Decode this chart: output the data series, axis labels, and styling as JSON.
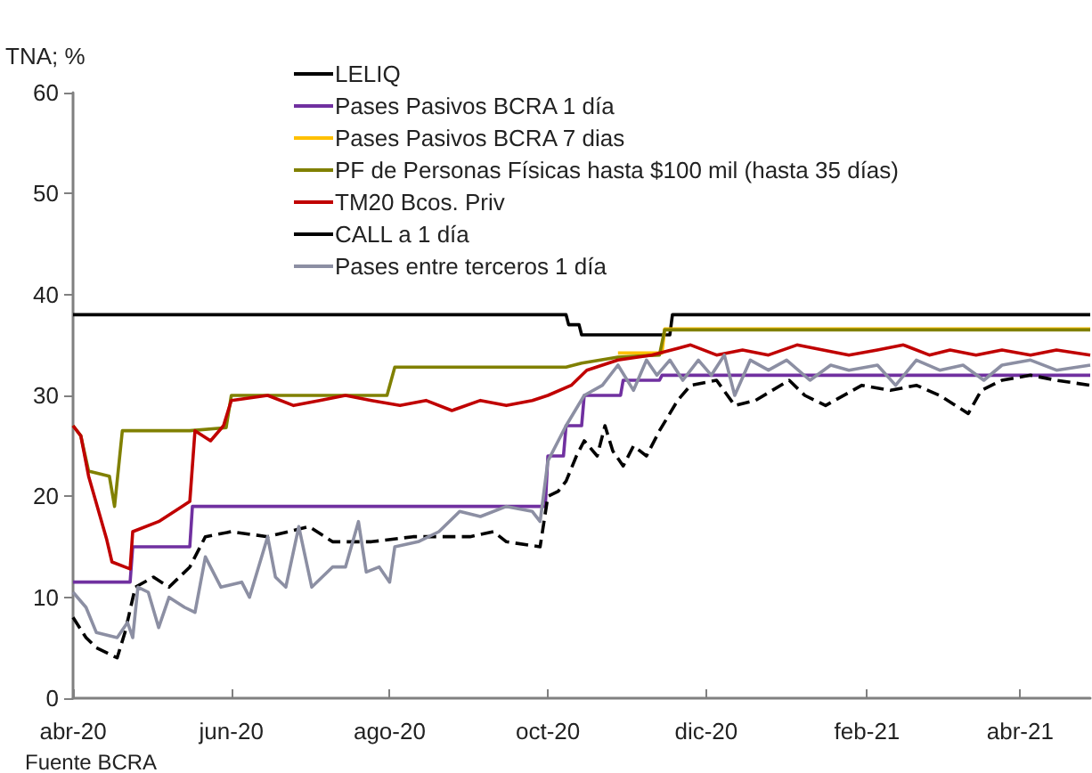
{
  "chart_data": {
    "type": "line",
    "ylabel": "TNA; %",
    "annotations": [
      "Fuente BCRA"
    ],
    "xlim": [
      "2020-04-01",
      "2021-04-28"
    ],
    "xticks": [
      {
        "value": "2020-04-01",
        "label": "abr-20"
      },
      {
        "value": "2020-06-01",
        "label": "jun-20"
      },
      {
        "value": "2020-08-01",
        "label": "ago-20"
      },
      {
        "value": "2020-10-01",
        "label": "oct-20"
      },
      {
        "value": "2020-12-01",
        "label": "dic-20"
      },
      {
        "value": "2021-02-01",
        "label": "feb-21"
      },
      {
        "value": "2021-04-01",
        "label": "abr-21"
      }
    ],
    "ylim": [
      0,
      60
    ],
    "yticks": [
      0,
      10,
      20,
      30,
      40,
      50,
      60
    ],
    "grid": false,
    "legend": "top",
    "marker": "none",
    "series": [
      {
        "name": "LELIQ",
        "color": "#000000",
        "x": [
          "2020-04-01",
          "2020-10-08",
          "2020-10-09",
          "2020-10-13",
          "2020-10-14",
          "2020-10-20",
          "2020-11-17",
          "2020-11-18",
          "2021-04-28"
        ],
        "values": [
          38,
          38,
          37,
          37,
          36,
          36,
          36,
          38,
          38
        ]
      },
      {
        "name": "Pases Pasivos BCRA 1 día",
        "color": "#7030a0",
        "x": [
          "2020-04-01",
          "2020-04-23",
          "2020-04-24",
          "2020-05-16",
          "2020-05-17",
          "2020-09-30",
          "2020-10-01",
          "2020-10-07",
          "2020-10-08",
          "2020-10-14",
          "2020-10-15",
          "2020-10-29",
          "2020-10-30",
          "2020-11-13",
          "2020-11-14",
          "2021-04-28"
        ],
        "values": [
          11.5,
          11.5,
          15,
          15,
          19,
          19,
          24,
          24,
          27,
          27,
          30,
          30,
          31.5,
          31.5,
          32,
          32
        ]
      },
      {
        "name": "Pases Pasivos BCRA 7 dias",
        "color": "#ffc000",
        "x": [
          "2020-10-28",
          "2020-11-14",
          "2020-11-15",
          "2021-04-28"
        ],
        "values": [
          34.2,
          34.2,
          36.6,
          36.6
        ]
      },
      {
        "name": "PF de Personas Físicas hasta $100 mil (hasta 35 días)",
        "color": "#808000",
        "x": [
          "2020-04-01",
          "2020-04-04",
          "2020-04-07",
          "2020-04-15",
          "2020-04-17",
          "2020-04-20",
          "2020-05-16",
          "2020-05-30",
          "2020-06-01",
          "2020-07-31",
          "2020-08-03",
          "2020-10-08",
          "2020-10-14",
          "2020-10-28",
          "2020-11-13",
          "2020-11-15",
          "2021-04-28"
        ],
        "values": [
          27,
          26,
          22.5,
          22,
          19,
          26.5,
          26.5,
          26.8,
          30,
          30,
          32.8,
          32.8,
          33.2,
          33.8,
          34,
          36.5,
          36.5
        ]
      },
      {
        "name": "TM20 Bcos. Priv",
        "color": "#c00000",
        "x": [
          "2020-04-01",
          "2020-04-04",
          "2020-04-07",
          "2020-04-14",
          "2020-04-16",
          "2020-04-21",
          "2020-04-23",
          "2020-04-24",
          "2020-05-04",
          "2020-05-13",
          "2020-05-16",
          "2020-05-18",
          "2020-05-24",
          "2020-05-29",
          "2020-06-01",
          "2020-06-15",
          "2020-06-25",
          "2020-07-05",
          "2020-07-15",
          "2020-07-25",
          "2020-08-05",
          "2020-08-15",
          "2020-08-25",
          "2020-09-05",
          "2020-09-15",
          "2020-09-25",
          "2020-10-01",
          "2020-10-10",
          "2020-10-16",
          "2020-10-22",
          "2020-10-28",
          "2020-11-10",
          "2020-11-25",
          "2020-12-05",
          "2020-12-15",
          "2020-12-25",
          "2021-01-05",
          "2021-01-15",
          "2021-01-25",
          "2021-02-05",
          "2021-02-15",
          "2021-02-25",
          "2021-03-05",
          "2021-03-15",
          "2021-03-25",
          "2021-04-05",
          "2021-04-15",
          "2021-04-28"
        ],
        "values": [
          27,
          26,
          22,
          15.7,
          13.5,
          13,
          12.8,
          16.5,
          17.5,
          19,
          19.5,
          26.5,
          25.5,
          27,
          29.5,
          30,
          29,
          29.5,
          30,
          29.5,
          29,
          29.5,
          28.5,
          29.5,
          29,
          29.5,
          30,
          31,
          32.5,
          33,
          33.5,
          34,
          35,
          34,
          34.5,
          34,
          35,
          34.5,
          34,
          34.5,
          35,
          34,
          34.5,
          34,
          34.5,
          34,
          34.5,
          34
        ]
      },
      {
        "name": "CALL a 1 día",
        "color": "#000000",
        "line_style": "dashed",
        "x": [
          "2020-04-01",
          "2020-04-06",
          "2020-04-10",
          "2020-04-18",
          "2020-04-21",
          "2020-04-25",
          "2020-05-02",
          "2020-05-08",
          "2020-05-16",
          "2020-05-22",
          "2020-06-01",
          "2020-06-15",
          "2020-07-01",
          "2020-07-10",
          "2020-07-25",
          "2020-08-10",
          "2020-09-01",
          "2020-09-10",
          "2020-09-15",
          "2020-09-28",
          "2020-10-01",
          "2020-10-05",
          "2020-10-08",
          "2020-10-12",
          "2020-10-15",
          "2020-10-20",
          "2020-10-23",
          "2020-10-26",
          "2020-10-30",
          "2020-11-03",
          "2020-11-08",
          "2020-11-13",
          "2020-11-20",
          "2020-11-25",
          "2020-12-05",
          "2020-12-12",
          "2020-12-20",
          "2021-01-02",
          "2021-01-08",
          "2021-01-16",
          "2021-01-30",
          "2021-02-10",
          "2021-02-20",
          "2021-03-01",
          "2021-03-12",
          "2021-03-17",
          "2021-03-25",
          "2021-04-05",
          "2021-04-15",
          "2021-04-28"
        ],
        "values": [
          8,
          6,
          5,
          4,
          6.5,
          11,
          12,
          11,
          13,
          16,
          16.5,
          16,
          17,
          15.5,
          15.5,
          16,
          16,
          16.5,
          15.5,
          15,
          20,
          20.5,
          21.5,
          24,
          25.5,
          24,
          27,
          24.5,
          23,
          25,
          24,
          26.5,
          29.5,
          31,
          31.5,
          29,
          29.5,
          31.5,
          30,
          29,
          31,
          30.5,
          31,
          30,
          28.2,
          30.5,
          31.5,
          32,
          31.5,
          31
        ]
      },
      {
        "name": "Pases entre terceros 1 día",
        "color": "#8c8fa3",
        "x": [
          "2020-04-01",
          "2020-04-06",
          "2020-04-10",
          "2020-04-18",
          "2020-04-22",
          "2020-04-24",
          "2020-04-26",
          "2020-04-30",
          "2020-05-04",
          "2020-05-08",
          "2020-05-14",
          "2020-05-18",
          "2020-05-22",
          "2020-05-28",
          "2020-06-05",
          "2020-06-08",
          "2020-06-15",
          "2020-06-18",
          "2020-06-22",
          "2020-06-27",
          "2020-07-02",
          "2020-07-10",
          "2020-07-15",
          "2020-07-20",
          "2020-07-23",
          "2020-07-28",
          "2020-08-01",
          "2020-08-03",
          "2020-08-12",
          "2020-08-20",
          "2020-08-28",
          "2020-09-05",
          "2020-09-15",
          "2020-09-25",
          "2020-09-28",
          "2020-10-01",
          "2020-10-08",
          "2020-10-15",
          "2020-10-22",
          "2020-10-28",
          "2020-11-03",
          "2020-11-08",
          "2020-11-12",
          "2020-11-17",
          "2020-11-22",
          "2020-11-28",
          "2020-12-03",
          "2020-12-08",
          "2020-12-12",
          "2020-12-18",
          "2020-12-25",
          "2021-01-01",
          "2021-01-10",
          "2021-01-18",
          "2021-01-25",
          "2021-02-05",
          "2021-02-12",
          "2021-02-20",
          "2021-03-01",
          "2021-03-10",
          "2021-03-18",
          "2021-03-25",
          "2021-04-05",
          "2021-04-15",
          "2021-04-28"
        ],
        "values": [
          10.5,
          9,
          6.5,
          6,
          7.5,
          6,
          11,
          10.5,
          7,
          10,
          9,
          8.5,
          14,
          11,
          11.5,
          10,
          16,
          12,
          11,
          17,
          11,
          13,
          13,
          17.5,
          12.5,
          13,
          11.5,
          15,
          15.5,
          16.5,
          18.5,
          18,
          19,
          18.5,
          17.5,
          23.5,
          27,
          30,
          31,
          33,
          30.5,
          33.5,
          32,
          33.5,
          31.5,
          33.5,
          32,
          34,
          30,
          33.5,
          32.5,
          33.5,
          31.5,
          33,
          32.5,
          33,
          31,
          33.5,
          32.5,
          33,
          31.5,
          33,
          33.5,
          32.5,
          33
        ]
      }
    ]
  }
}
